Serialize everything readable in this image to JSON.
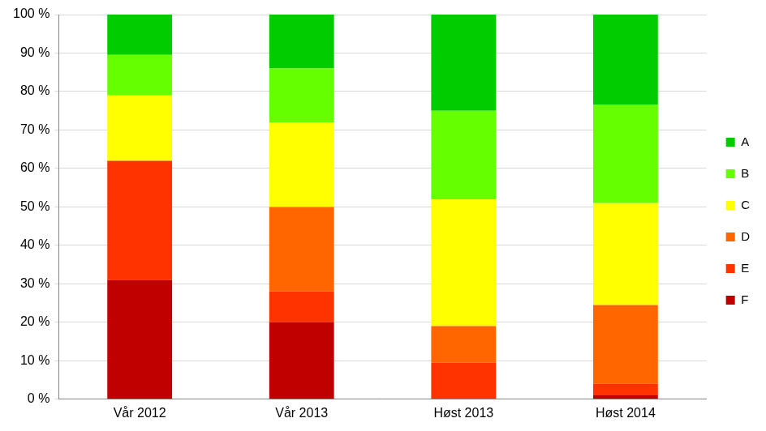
{
  "chart_data": {
    "type": "bar",
    "stacked": true,
    "grid": true,
    "legend": "right",
    "categories": [
      "Vår 2012",
      "Vår 2013",
      "Høst 2013",
      "Høst 2014"
    ],
    "series": [
      {
        "name": "F",
        "color": "#c00000",
        "values": [
          31,
          20,
          0,
          1
        ]
      },
      {
        "name": "E",
        "color": "#ff3300",
        "values": [
          31,
          8,
          9.5,
          3
        ]
      },
      {
        "name": "D",
        "color": "#ff6600",
        "values": [
          0,
          22,
          9.5,
          20.5
        ]
      },
      {
        "name": "C",
        "color": "#ffff00",
        "values": [
          17,
          22,
          33,
          26.5
        ]
      },
      {
        "name": "B",
        "color": "#66ff00",
        "values": [
          10.5,
          14,
          23,
          25.5
        ]
      },
      {
        "name": "A",
        "color": "#00cc00",
        "values": [
          10.5,
          14,
          25,
          23.5
        ]
      }
    ],
    "ylim": [
      0,
      100
    ],
    "yticks": [
      {
        "value": 0,
        "label": "0 %"
      },
      {
        "value": 10,
        "label": "10 %"
      },
      {
        "value": 20,
        "label": "20 %"
      },
      {
        "value": 30,
        "label": "30 %"
      },
      {
        "value": 40,
        "label": "40 %"
      },
      {
        "value": 50,
        "label": "50 %"
      },
      {
        "value": 60,
        "label": "60 %"
      },
      {
        "value": 70,
        "label": "70 %"
      },
      {
        "value": 80,
        "label": "80 %"
      },
      {
        "value": 90,
        "label": "90 %"
      },
      {
        "value": 100,
        "label": "100 %"
      }
    ]
  }
}
